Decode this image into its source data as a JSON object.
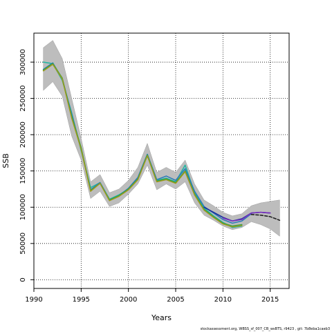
{
  "chart_data": {
    "type": "line",
    "title": "",
    "xlabel": "Years",
    "ylabel": "SSB",
    "xlim": [
      1990,
      2017
    ],
    "ylim": [
      -12000,
      340000
    ],
    "x_ticks": [
      1990,
      1995,
      2000,
      2005,
      2010,
      2015
    ],
    "y_ticks": [
      0,
      50000,
      100000,
      150000,
      200000,
      250000,
      300000
    ],
    "grid": true,
    "grid_style": "dotted",
    "legend": "none",
    "confidence_band": {
      "color": "#bdbdbd",
      "x": [
        1991,
        1992,
        1993,
        1994,
        1995,
        1996,
        1997,
        1998,
        1999,
        2000,
        2001,
        2002,
        2003,
        2004,
        2005,
        2006,
        2007,
        2008,
        2009,
        2010,
        2011,
        2012,
        2013,
        2014,
        2015,
        2016
      ],
      "upper": [
        320000,
        330000,
        305000,
        250000,
        195000,
        135000,
        145000,
        120000,
        125000,
        137000,
        155000,
        188000,
        148000,
        155000,
        148000,
        165000,
        132000,
        110000,
        102000,
        93000,
        88000,
        91000,
        102000,
        106000,
        108000,
        110000
      ],
      "lower": [
        261000,
        273000,
        253000,
        198000,
        165000,
        112000,
        122000,
        101000,
        106000,
        118000,
        132000,
        158000,
        124000,
        132000,
        125000,
        135000,
        106000,
        89000,
        82000,
        74000,
        69000,
        72000,
        80000,
        76000,
        70000,
        60000
      ]
    },
    "series": [
      {
        "color": "#26b5a3",
        "x": [
          1991,
          1992,
          1993,
          1994,
          1995,
          1996,
          1997,
          1998,
          1999,
          2000,
          2001,
          2002,
          2003,
          2004,
          2005,
          2006,
          2007,
          2008,
          2009,
          2010,
          2011,
          2012
        ],
        "values": [
          300000,
          298000,
          275000,
          230000,
          178000,
          127000,
          134000,
          111000,
          117000,
          125000,
          140000,
          171000,
          137000,
          140000,
          135000,
          158000,
          120000,
          99000,
          88000,
          79000,
          72000,
          74000
        ]
      },
      {
        "color": "#2e7db8",
        "x": [
          1991,
          1992,
          1993,
          1994,
          1995,
          1996,
          1997,
          1998,
          1999,
          2000,
          2001,
          2002,
          2003,
          2004,
          2005,
          2006,
          2007,
          2008,
          2009,
          2010,
          2011,
          2012,
          2013
        ],
        "values": [
          290000,
          299000,
          277000,
          228000,
          180000,
          124000,
          134000,
          110000,
          116000,
          126000,
          141000,
          173000,
          138000,
          143000,
          137000,
          153000,
          122000,
          101000,
          92000,
          83000,
          78000,
          81000,
          91000
        ]
      },
      {
        "color": "#1a2f9e",
        "x": [
          2008,
          2009,
          2010,
          2011,
          2012,
          2013,
          2014,
          2015
        ],
        "values": [
          100000,
          93000,
          86000,
          81000,
          84000,
          92000,
          93000,
          92000
        ]
      },
      {
        "color": "#7a2fbf",
        "x": [
          2010,
          2011,
          2012,
          2013,
          2014,
          2015
        ],
        "values": [
          85000,
          81000,
          83000,
          92000,
          93000,
          92000
        ]
      },
      {
        "color": "#2aa14a",
        "x": [
          1991,
          1992,
          1993,
          1994,
          1995,
          1996,
          1997,
          1998,
          1999,
          2000,
          2001,
          2002,
          2003,
          2004,
          2005,
          2006,
          2007,
          2008,
          2009,
          2010,
          2011,
          2012
        ],
        "values": [
          289000,
          298000,
          278000,
          225000,
          182000,
          123000,
          133000,
          110000,
          116000,
          125000,
          139000,
          172000,
          136000,
          139000,
          134000,
          150000,
          118000,
          97000,
          87000,
          78000,
          74000,
          76000
        ]
      },
      {
        "color": "#9a9a1c",
        "x": [
          1991,
          1992,
          1993,
          1994,
          1995,
          1996,
          1997,
          1998,
          1999,
          2000,
          2001,
          2002,
          2003,
          2004,
          2005,
          2006,
          2007,
          2008,
          2009,
          2010,
          2011,
          2012
        ],
        "values": [
          288000,
          297000,
          277000,
          223000,
          180000,
          122000,
          133000,
          109000,
          115000,
          124000,
          138000,
          171000,
          135000,
          138000,
          133000,
          149000,
          117000,
          96000,
          86000,
          77000,
          73000,
          75000
        ]
      },
      {
        "color": "#222222",
        "dashed": true,
        "x": [
          2013,
          2014,
          2015,
          2016
        ],
        "values": [
          90000,
          89000,
          87000,
          82000
        ]
      }
    ]
  },
  "footer": {
    "text": "stockassessment.org, WBSS_sf_007_CB_wsBTS, r9423 , git: 7b8eba1caeb3"
  }
}
